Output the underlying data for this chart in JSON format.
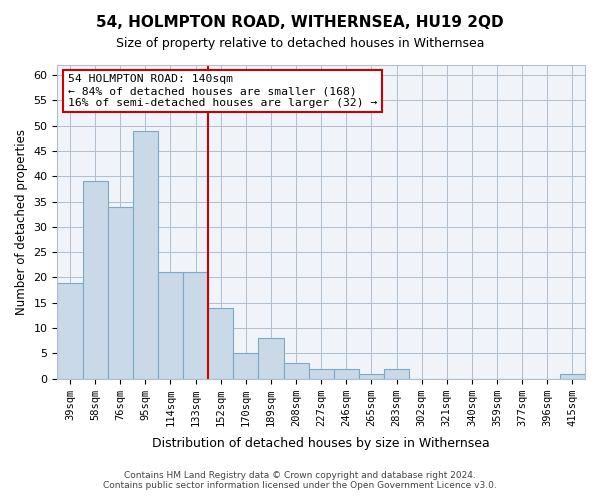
{
  "title": "54, HOLMPTON ROAD, WITHERNSEA, HU19 2QD",
  "subtitle": "Size of property relative to detached houses in Withernsea",
  "xlabel": "Distribution of detached houses by size in Withernsea",
  "ylabel": "Number of detached properties",
  "categories": [
    "39sqm",
    "58sqm",
    "76sqm",
    "95sqm",
    "114sqm",
    "133sqm",
    "152sqm",
    "170sqm",
    "189sqm",
    "208sqm",
    "227sqm",
    "246sqm",
    "265sqm",
    "283sqm",
    "302sqm",
    "321sqm",
    "340sqm",
    "359sqm",
    "377sqm",
    "396sqm",
    "415sqm"
  ],
  "values": [
    19,
    39,
    34,
    49,
    21,
    21,
    14,
    5,
    8,
    3,
    2,
    2,
    1,
    2,
    0,
    0,
    0,
    0,
    0,
    0,
    1
  ],
  "bar_color": "#c9d9e8",
  "bar_edge_color": "#7aaac8",
  "vline_x": 5.5,
  "vline_color": "#cc0000",
  "annotation_title": "54 HOLMPTON ROAD: 140sqm",
  "annotation_line1": "← 84% of detached houses are smaller (168)",
  "annotation_line2": "16% of semi-detached houses are larger (32) →",
  "annotation_box_color": "#cc0000",
  "ylim": [
    0,
    62
  ],
  "yticks": [
    0,
    5,
    10,
    15,
    20,
    25,
    30,
    35,
    40,
    45,
    50,
    55,
    60
  ],
  "footer1": "Contains HM Land Registry data © Crown copyright and database right 2024.",
  "footer2": "Contains public sector information licensed under the Open Government Licence v3.0.",
  "bg_color": "#f0f4f8"
}
